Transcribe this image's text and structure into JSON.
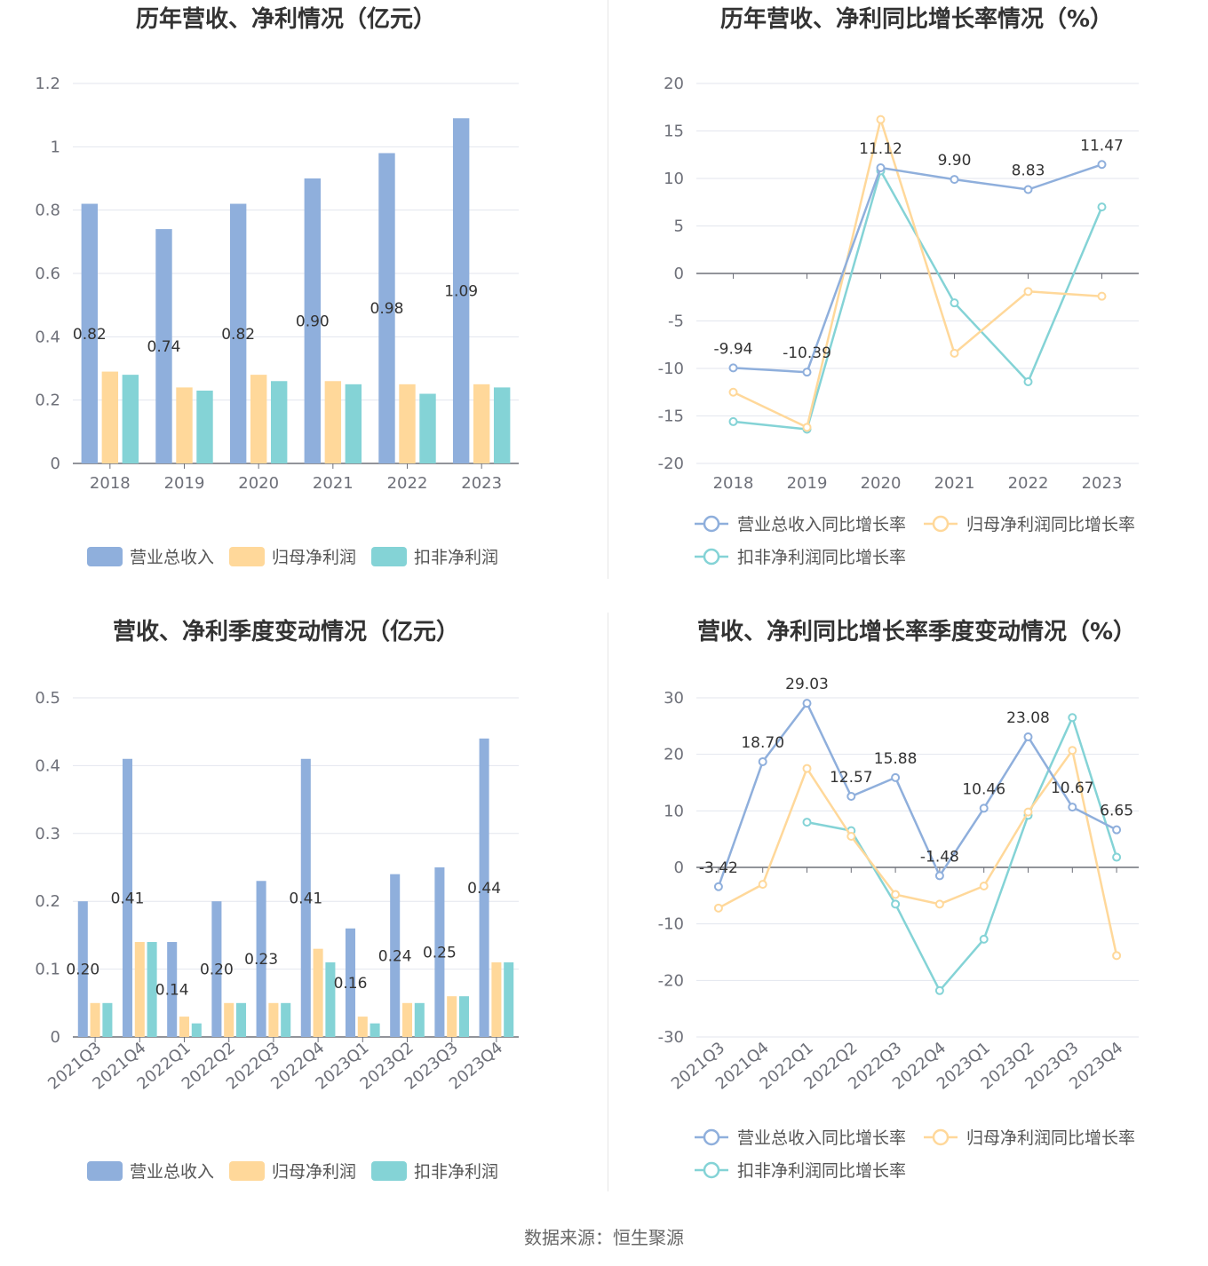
{
  "colors": {
    "revenue": "#8fafdc",
    "parent": "#ffd89a",
    "deducted": "#84d3d6",
    "grid": "#e3e6ee",
    "axis": "#6e7079"
  },
  "source": "数据来源：恒生聚源",
  "chart_data": [
    {
      "type": "bar",
      "title": "历年营收、净利情况（亿元）",
      "categories": [
        "2018",
        "2019",
        "2020",
        "2021",
        "2022",
        "2023"
      ],
      "yticks": [
        "0",
        "0.2",
        "0.4",
        "0.6",
        "0.8",
        "1",
        "1.2"
      ],
      "ylim": [
        0,
        1.2
      ],
      "series": [
        {
          "name": "营业总收入",
          "values": [
            0.82,
            0.74,
            0.82,
            0.9,
            0.98,
            1.09
          ],
          "labels": [
            "0.82",
            "0.74",
            "0.82",
            "0.90",
            "0.98",
            "1.09"
          ]
        },
        {
          "name": "归母净利润",
          "values": [
            0.29,
            0.24,
            0.28,
            0.26,
            0.25,
            0.25
          ]
        },
        {
          "name": "扣非净利润",
          "values": [
            0.28,
            0.23,
            0.26,
            0.25,
            0.22,
            0.24
          ]
        }
      ],
      "grid": true,
      "legend": "bottom"
    },
    {
      "type": "line",
      "title": "历年营收、净利同比增长率情况（%）",
      "categories": [
        "2018",
        "2019",
        "2020",
        "2021",
        "2022",
        "2023"
      ],
      "yticks": [
        "-20",
        "-15",
        "-10",
        "-5",
        "0",
        "5",
        "10",
        "15",
        "20"
      ],
      "ylim": [
        -20,
        20
      ],
      "series": [
        {
          "name": "营业总收入同比增长率",
          "values": [
            -9.94,
            -10.39,
            11.12,
            9.9,
            8.83,
            11.47
          ],
          "labels": [
            "-9.94",
            "-10.39",
            "11.12",
            "9.90",
            "8.83",
            "11.47"
          ]
        },
        {
          "name": "归母净利润同比增长率",
          "values": [
            -12.5,
            -16.2,
            16.2,
            -8.4,
            -1.9,
            -2.4
          ]
        },
        {
          "name": "扣非净利润同比增长率",
          "values": [
            -15.6,
            -16.4,
            10.8,
            -3.1,
            -11.4,
            7.0
          ]
        }
      ],
      "grid": true,
      "legend": "bottom"
    },
    {
      "type": "bar",
      "title": "营收、净利季度变动情况（亿元）",
      "categories": [
        "2021Q3",
        "2021Q4",
        "2022Q1",
        "2022Q2",
        "2022Q3",
        "2022Q4",
        "2023Q1",
        "2023Q2",
        "2023Q3",
        "2023Q4"
      ],
      "yticks": [
        "0",
        "0.1",
        "0.2",
        "0.3",
        "0.4",
        "0.5"
      ],
      "ylim": [
        0,
        0.5
      ],
      "series": [
        {
          "name": "营业总收入",
          "values": [
            0.2,
            0.41,
            0.14,
            0.2,
            0.23,
            0.41,
            0.16,
            0.24,
            0.25,
            0.44
          ],
          "labels": [
            "0.20",
            "0.41",
            "0.14",
            "0.20",
            "0.23",
            "0.41",
            "0.16",
            "0.24",
            "0.25",
            "0.44"
          ]
        },
        {
          "name": "归母净利润",
          "values": [
            0.05,
            0.14,
            0.03,
            0.05,
            0.05,
            0.13,
            0.03,
            0.05,
            0.06,
            0.11
          ]
        },
        {
          "name": "扣非净利润",
          "values": [
            0.05,
            0.14,
            0.02,
            0.05,
            0.05,
            0.11,
            0.02,
            0.05,
            0.06,
            0.11
          ]
        }
      ],
      "grid": true,
      "legend": "bottom"
    },
    {
      "type": "line",
      "title": "营收、净利同比增长率季度变动情况（%）",
      "categories": [
        "2021Q3",
        "2021Q4",
        "2022Q1",
        "2022Q2",
        "2022Q3",
        "2022Q4",
        "2023Q1",
        "2023Q2",
        "2023Q3",
        "2023Q4"
      ],
      "yticks": [
        "-30",
        "-20",
        "-10",
        "0",
        "10",
        "20",
        "30"
      ],
      "ylim": [
        -30,
        30
      ],
      "series": [
        {
          "name": "营业总收入同比增长率",
          "values": [
            -3.42,
            18.7,
            29.03,
            12.57,
            15.88,
            -1.48,
            10.46,
            23.08,
            10.67,
            6.65
          ],
          "labels": [
            "-3.42",
            "18.70",
            "29.03",
            "12.57",
            "15.88",
            "-1.48",
            "10.46",
            "23.08",
            "10.67",
            "6.65"
          ]
        },
        {
          "name": "归母净利润同比增长率",
          "values": [
            -7.2,
            -3.0,
            17.5,
            5.5,
            -4.8,
            -6.5,
            -3.3,
            9.8,
            20.7,
            -15.6
          ]
        },
        {
          "name": "扣非净利润同比增长率",
          "values": [
            null,
            null,
            8.0,
            6.5,
            -6.5,
            -21.8,
            -12.7,
            9.2,
            26.5,
            1.8
          ]
        }
      ],
      "grid": true,
      "legend": "bottom"
    }
  ]
}
